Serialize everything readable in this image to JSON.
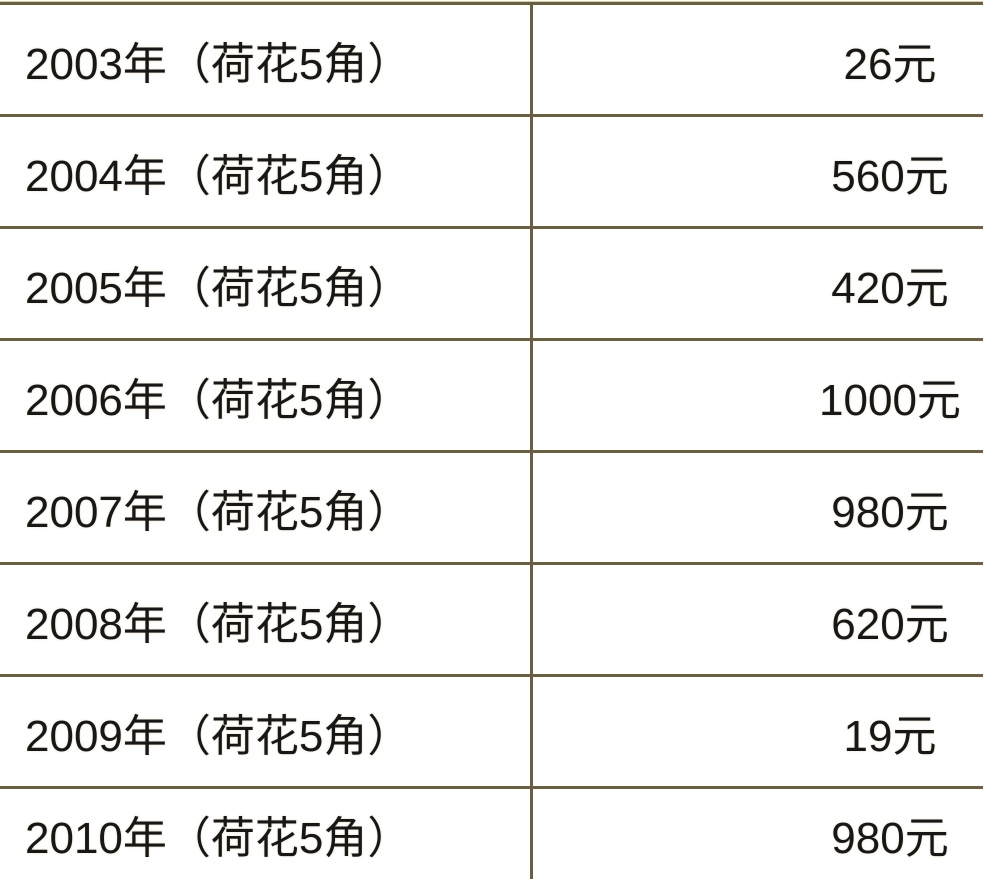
{
  "page": {
    "background_color": "#ffffff",
    "line_color": "#6b5f40",
    "text_color": "#171717"
  },
  "table": {
    "description": "price list of lotus 5-jiao coins by year",
    "columns": [
      {
        "name": "year-and-coin",
        "align": "left"
      },
      {
        "name": "price",
        "align": "right"
      }
    ],
    "rows": [
      {
        "label": "2003年（荷花5角）",
        "price": "26元"
      },
      {
        "label": "2004年（荷花5角）",
        "price": "560元"
      },
      {
        "label": "2005年（荷花5角）",
        "price": "420元"
      },
      {
        "label": "2006年（荷花5角）",
        "price": "1000元"
      },
      {
        "label": "2007年（荷花5角）",
        "price": "980元"
      },
      {
        "label": "2008年（荷花5角）",
        "price": "620元"
      },
      {
        "label": "2009年（荷花5角）",
        "price": "19元"
      },
      {
        "label": "2010年（荷花5角）",
        "price": "980元"
      }
    ]
  }
}
